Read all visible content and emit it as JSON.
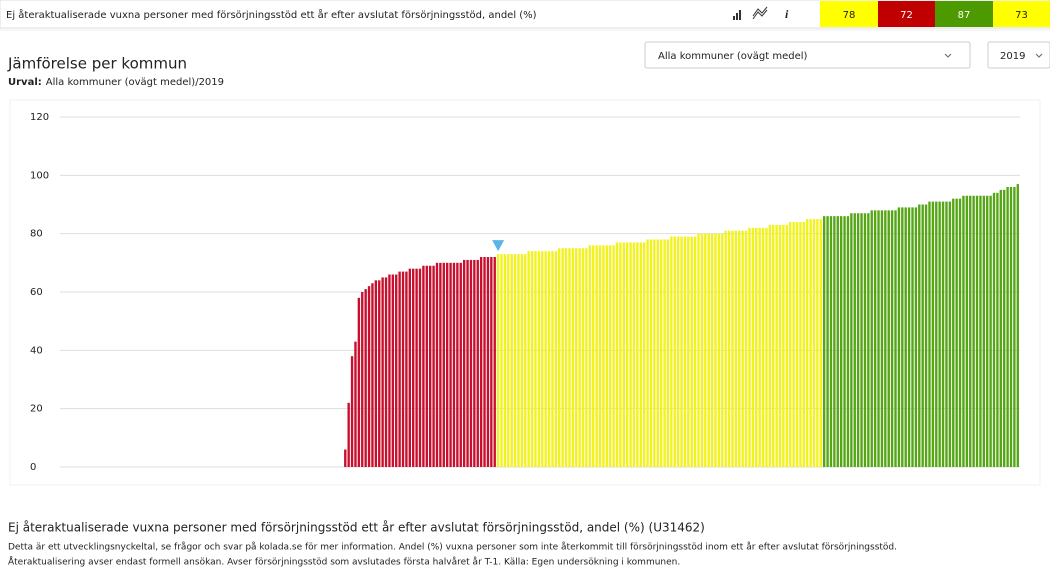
{
  "header": {
    "title": "Ej återaktualiserade vuxna personer med försörjningsstöd ett år efter avslutat försörjningsstöd, andel (%)",
    "scores": [
      {
        "value": 78,
        "color": "#ffff00"
      },
      {
        "value": 72,
        "color": "#c00000"
      },
      {
        "value": 87,
        "color": "#4c9a00"
      },
      {
        "value": 73,
        "color": "#ffff00"
      }
    ]
  },
  "panel": {
    "title": "Jämförelse per kommun",
    "selection_label": "Urval:",
    "selection": "Alla kommuner (ovägt medel)/2019",
    "dropdown_area": "Alla kommuner (ovägt medel)",
    "dropdown_year": "2019"
  },
  "chart_data": {
    "type": "bar",
    "ylim": [
      0,
      120
    ],
    "yticks": [
      0,
      20,
      40,
      60,
      80,
      100,
      120
    ],
    "grid": true,
    "color_ranges": [
      {
        "max": 72,
        "color": "#c8102e"
      },
      {
        "max": 85,
        "color": "#f2f21c"
      },
      {
        "color": "#55a614"
      }
    ],
    "marker_color": "#5bb4e5",
    "values": [
      null,
      null,
      null,
      null,
      null,
      null,
      null,
      null,
      null,
      null,
      null,
      null,
      null,
      null,
      null,
      null,
      null,
      null,
      null,
      null,
      null,
      null,
      null,
      null,
      null,
      null,
      null,
      null,
      null,
      null,
      null,
      null,
      null,
      null,
      null,
      null,
      null,
      null,
      null,
      null,
      null,
      null,
      null,
      null,
      null,
      null,
      null,
      null,
      null,
      null,
      null,
      null,
      null,
      null,
      null,
      null,
      null,
      null,
      null,
      null,
      null,
      null,
      null,
      null,
      null,
      null,
      null,
      null,
      null,
      null,
      null,
      null,
      null,
      null,
      null,
      null,
      null,
      null,
      null,
      null,
      null,
      null,
      null,
      null,
      null,
      null,
      null,
      null,
      null,
      null,
      null,
      6,
      22,
      38,
      43,
      58,
      60,
      61,
      62,
      63,
      64,
      64,
      65,
      65,
      66,
      66,
      66,
      67,
      67,
      67,
      68,
      68,
      68,
      68,
      69,
      69,
      69,
      69,
      70,
      70,
      70,
      70,
      70,
      70,
      70,
      70,
      71,
      71,
      71,
      71,
      71,
      72,
      72,
      72,
      72,
      72,
      73,
      73,
      73,
      73,
      73,
      73,
      73,
      73,
      73,
      74,
      74,
      74,
      74,
      74,
      74,
      74,
      74,
      74,
      75,
      75,
      75,
      75,
      75,
      75,
      75,
      75,
      75,
      76,
      76,
      76,
      76,
      76,
      76,
      76,
      76,
      77,
      77,
      77,
      77,
      77,
      77,
      77,
      77,
      77,
      78,
      78,
      78,
      78,
      78,
      78,
      78,
      79,
      79,
      79,
      79,
      79,
      79,
      79,
      79,
      80,
      80,
      80,
      80,
      80,
      80,
      80,
      80,
      81,
      81,
      81,
      81,
      81,
      81,
      81,
      82,
      82,
      82,
      82,
      82,
      82,
      83,
      83,
      83,
      83,
      83,
      83,
      84,
      84,
      84,
      84,
      84,
      85,
      85,
      85,
      85,
      85,
      86,
      86,
      86,
      86,
      86,
      86,
      86,
      86,
      87,
      87,
      87,
      87,
      87,
      87,
      88,
      88,
      88,
      88,
      88,
      88,
      88,
      88,
      89,
      89,
      89,
      89,
      89,
      89,
      90,
      90,
      90,
      91,
      91,
      91,
      91,
      91,
      91,
      91,
      92,
      92,
      92,
      93,
      93,
      93,
      93,
      93,
      93,
      93,
      93,
      93,
      94,
      94,
      95,
      95,
      96,
      96,
      96,
      97
    ]
  },
  "footer": {
    "title": "Ej återaktualiserade vuxna personer med försörjningsstöd ett år efter avslutat försörjningsstöd, andel (%) (U31462)",
    "lines": [
      "Detta är ett utvecklingsnyckeltal, se frågor och svar på kolada.se för mer information. Andel (%) vuxna personer som inte återkommit till försörjningsstöd inom ett år efter avslutat försörjningsstöd.",
      "Återaktualisering avser endast formell ansökan. Avser försörjningsstöd som avslutades första halvåret år T-1. Källa: Egen undersökning i kommunen."
    ]
  }
}
